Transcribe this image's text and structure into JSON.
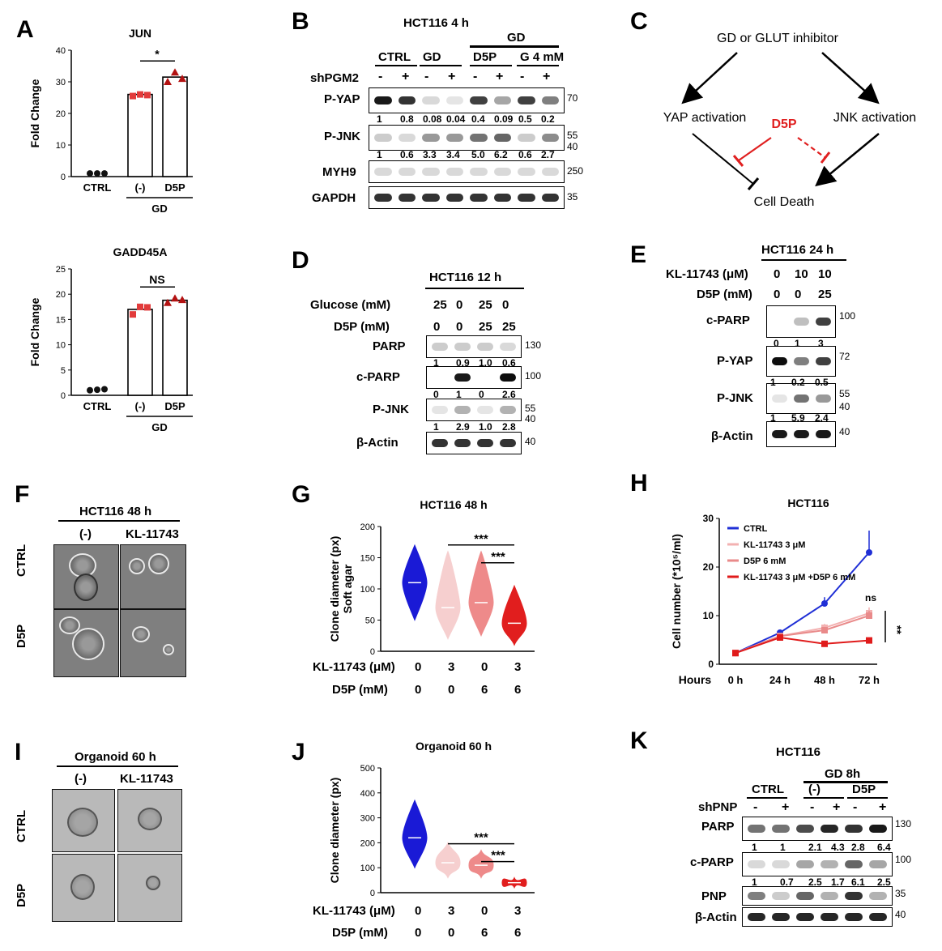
{
  "panels": {
    "A": "A",
    "B": "B",
    "C": "C",
    "D": "D",
    "E": "E",
    "F": "F",
    "G": "G",
    "H": "H",
    "I": "I",
    "J": "J",
    "K": "K"
  },
  "chart_data": [
    {
      "id": "A_JUN",
      "type": "bar",
      "title": "JUN",
      "ylabel": "Fold Change",
      "ylim": [
        0,
        40
      ],
      "yticks": [
        "0",
        "10",
        "20",
        "30",
        "40"
      ],
      "categories": [
        "CTRL",
        "(-)",
        "D5P"
      ],
      "group_label": "GD",
      "values": [
        1,
        26,
        31.5
      ],
      "points": [
        [
          1,
          1,
          1
        ],
        [
          25.5,
          26,
          25.8
        ],
        [
          30,
          33,
          31
        ]
      ],
      "significance": [
        {
          "label": "*",
          "between": [
            "(-)",
            "D5P"
          ]
        }
      ],
      "point_colors": [
        "#111111",
        "#e23b3b",
        "#b31212"
      ]
    },
    {
      "id": "A_GADD45A",
      "type": "bar",
      "title": "GADD45A",
      "ylabel": "Fold Change",
      "ylim": [
        0,
        25
      ],
      "yticks": [
        "0",
        "5",
        "10",
        "15",
        "20",
        "25"
      ],
      "categories": [
        "CTRL",
        "(-)",
        "D5P"
      ],
      "group_label": "GD",
      "values": [
        1.1,
        17,
        18.8
      ],
      "points": [
        [
          1,
          1.1,
          1.2
        ],
        [
          16,
          17.5,
          17.4
        ],
        [
          18.3,
          19.2,
          18.9
        ]
      ],
      "significance": [
        {
          "label": "NS",
          "between": [
            "(-)",
            "D5P"
          ]
        }
      ],
      "point_colors": [
        "#111111",
        "#e23b3b",
        "#b31212"
      ]
    },
    {
      "id": "G",
      "type": "violin",
      "title": "HCT116  48 h",
      "ylabel": "Clone diameter (px)\nSoft agar",
      "ylim": [
        0,
        200
      ],
      "yticks": [
        "0",
        "50",
        "100",
        "150",
        "200"
      ],
      "conditions": [
        {
          "KL-11743 (μM)": "0",
          "D5P (mM)": "0"
        },
        {
          "KL-11743 (μM)": "3",
          "D5P (mM)": "0"
        },
        {
          "KL-11743 (μM)": "0",
          "D5P (mM)": "6"
        },
        {
          "KL-11743 (μM)": "3",
          "D5P (mM)": "6"
        }
      ],
      "ranges": [
        [
          50,
          170
        ],
        [
          20,
          160
        ],
        [
          25,
          160
        ],
        [
          10,
          105
        ]
      ],
      "medians": [
        110,
        70,
        78,
        45
      ],
      "colors": [
        "#1a1ad6",
        "#f6cfcf",
        "#ee8a8a",
        "#e11e1e"
      ],
      "significance": [
        {
          "label": "***",
          "between": [
            2,
            4
          ]
        },
        {
          "label": "***",
          "between": [
            3,
            4
          ]
        }
      ]
    },
    {
      "id": "H",
      "type": "line",
      "title": "HCT116",
      "ylabel": "Cell number (*10⁵/ml)",
      "xlabel": "Hours",
      "ylim": [
        0,
        30
      ],
      "yticks": [
        "0",
        "10",
        "20",
        "30"
      ],
      "x": [
        "0 h",
        "24 h",
        "48 h",
        "72 h"
      ],
      "series": [
        {
          "name": "CTRL",
          "values": [
            2.3,
            6.5,
            12.5,
            23
          ],
          "errors": [
            0.2,
            0.3,
            1.3,
            4.5
          ],
          "color": "#1f2fd6"
        },
        {
          "name": "KL-11743 3 μM",
          "values": [
            2.3,
            5.8,
            7.5,
            10.5
          ],
          "errors": [
            0,
            0,
            0.8,
            1.2
          ],
          "color": "#f3b1b1"
        },
        {
          "name": "D5P 6 mM",
          "values": [
            2.3,
            5.8,
            7,
            10
          ],
          "errors": [
            0,
            0,
            0.5,
            1.0
          ],
          "color": "#e98a8a"
        },
        {
          "name": "KL-11743 3 μM +D5P 6 mM",
          "values": [
            2.3,
            5.5,
            4.2,
            4.9
          ],
          "errors": [
            0,
            0,
            0.3,
            0.3
          ],
          "color": "#e01b1b"
        }
      ],
      "annotations": [
        "ns",
        "**"
      ]
    },
    {
      "id": "J",
      "type": "violin",
      "title": "Organoid  60 h",
      "ylabel": "Clone diameter (px)",
      "ylim": [
        0,
        500
      ],
      "yticks": [
        "0",
        "100",
        "200",
        "300",
        "400",
        "500"
      ],
      "conditions": [
        {
          "KL-11743 (μM)": "0",
          "D5P (mM)": "0"
        },
        {
          "KL-11743 (μM)": "3",
          "D5P (mM)": "0"
        },
        {
          "KL-11743 (μM)": "0",
          "D5P (mM)": "6"
        },
        {
          "KL-11743 (μM)": "3",
          "D5P (mM)": "6"
        }
      ],
      "ranges": [
        [
          100,
          370
        ],
        [
          60,
          200
        ],
        [
          60,
          170
        ],
        [
          20,
          60
        ]
      ],
      "medians": [
        220,
        120,
        110,
        40
      ],
      "colors": [
        "#1a1ad6",
        "#f6cfcf",
        "#ee8a8a",
        "#e11e1e"
      ],
      "significance": [
        {
          "label": "***",
          "between": [
            2,
            4
          ]
        },
        {
          "label": "***",
          "between": [
            3,
            4
          ]
        }
      ]
    }
  ],
  "panelB": {
    "title": "HCT116 4 h",
    "gd_header": "GD",
    "groups": [
      "CTRL",
      "GD",
      "D5P",
      "G 4 mM"
    ],
    "sh_label": "shPGM2",
    "signs": [
      "-",
      "+",
      "-",
      "+",
      "-",
      "+",
      "-",
      "+"
    ],
    "rows": [
      {
        "label": "P-YAP",
        "marker": "70"
      },
      {
        "label": "P-JNK",
        "marker": "55",
        "marker2": "40"
      },
      {
        "label": "MYH9",
        "marker": "250"
      },
      {
        "label": "GAPDH",
        "marker": "35"
      }
    ],
    "quant_pyap": [
      "1",
      "0.8",
      "0.08",
      "0.04",
      "0.4",
      "0.09",
      "0.5",
      "0.2"
    ],
    "quant_pjnk": [
      "1",
      "0.6",
      "3.3",
      "3.4",
      "5.0",
      "6.2",
      "0.6",
      "2.7"
    ]
  },
  "panelC": {
    "top": "GD or GLUT inhibitor",
    "left": "YAP activation",
    "right": "JNK activation",
    "center": "D5P",
    "bottom": "Cell Death"
  },
  "panelD": {
    "title": "HCT116 12 h",
    "glucose_label": "Glucose (mM)",
    "glucose": [
      "25",
      "0",
      "25",
      "0"
    ],
    "d5p_label": "D5P (mM)",
    "d5p": [
      "0",
      "0",
      "25",
      "25"
    ],
    "rows": [
      {
        "label": "PARP",
        "marker": "130"
      },
      {
        "label": "c-PARP",
        "marker": "100"
      },
      {
        "label": "P-JNK",
        "marker": "55",
        "marker2": "40"
      },
      {
        "label": "β-Actin",
        "marker": "40"
      }
    ],
    "quant_parp": [
      "1",
      "0.9",
      "1.0",
      "0.6"
    ],
    "quant_cparp": [
      "0",
      "1",
      "0",
      "2.6"
    ],
    "quant_pjnk": [
      "1",
      "2.9",
      "1.0",
      "2.8"
    ]
  },
  "panelE": {
    "title": "HCT116 24 h",
    "kl_label": "KL-11743 (μM)",
    "kl": [
      "0",
      "10",
      "10"
    ],
    "d5p_label": "D5P (mM)",
    "d5p": [
      "0",
      "0",
      "25"
    ],
    "rows": [
      {
        "label": "c-PARP",
        "marker": "100"
      },
      {
        "label": "P-YAP",
        "marker": "72"
      },
      {
        "label": "P-JNK",
        "marker": "55",
        "marker2": "40"
      },
      {
        "label": "β-Actin",
        "marker": "40"
      }
    ],
    "quant_cparp": [
      "0",
      "1",
      "3"
    ],
    "quant_pyap": [
      "1",
      "0.2",
      "0.5"
    ],
    "quant_pjnk": [
      "1",
      "5.9",
      "2.4"
    ]
  },
  "panelF": {
    "title": "HCT116 48 h",
    "cols": [
      "(-)",
      "KL-11743"
    ],
    "rows": [
      "CTRL",
      "D5P"
    ]
  },
  "panelI": {
    "title": "Organoid  60 h",
    "cols": [
      "(-)",
      "KL-11743"
    ],
    "rows": [
      "CTRL",
      "D5P"
    ]
  },
  "panelG_labels": {
    "kl": "KL-11743 (μM)",
    "d5p": "D5P (mM)",
    "kl_vals": [
      "0",
      "3",
      "0",
      "3"
    ],
    "d5p_vals": [
      "0",
      "0",
      "6",
      "6"
    ]
  },
  "panelJ_labels": {
    "kl": "KL-11743 (μM)",
    "d5p": "D5P (mM)",
    "kl_vals": [
      "0",
      "3",
      "0",
      "3"
    ],
    "d5p_vals": [
      "0",
      "0",
      "6",
      "6"
    ]
  },
  "panelK": {
    "title": "HCT116",
    "gd_header": "GD 8h",
    "groups": [
      "CTRL",
      "(-)",
      "D5P"
    ],
    "sh_label": "shPNP",
    "signs": [
      "-",
      "+",
      "-",
      "+",
      "-",
      "+"
    ],
    "rows": [
      {
        "label": "PARP",
        "marker": "130"
      },
      {
        "label": "c-PARP",
        "marker": "100"
      },
      {
        "label": "PNP",
        "marker": "35"
      },
      {
        "label": "β-Actin",
        "marker": "40"
      }
    ],
    "quant_parp": [
      "1",
      "1",
      "2.1",
      "4.3",
      "2.8",
      "6.4"
    ],
    "quant_cparp": [
      "1",
      "0.7",
      "2.5",
      "1.7",
      "6.1",
      "2.5"
    ]
  }
}
